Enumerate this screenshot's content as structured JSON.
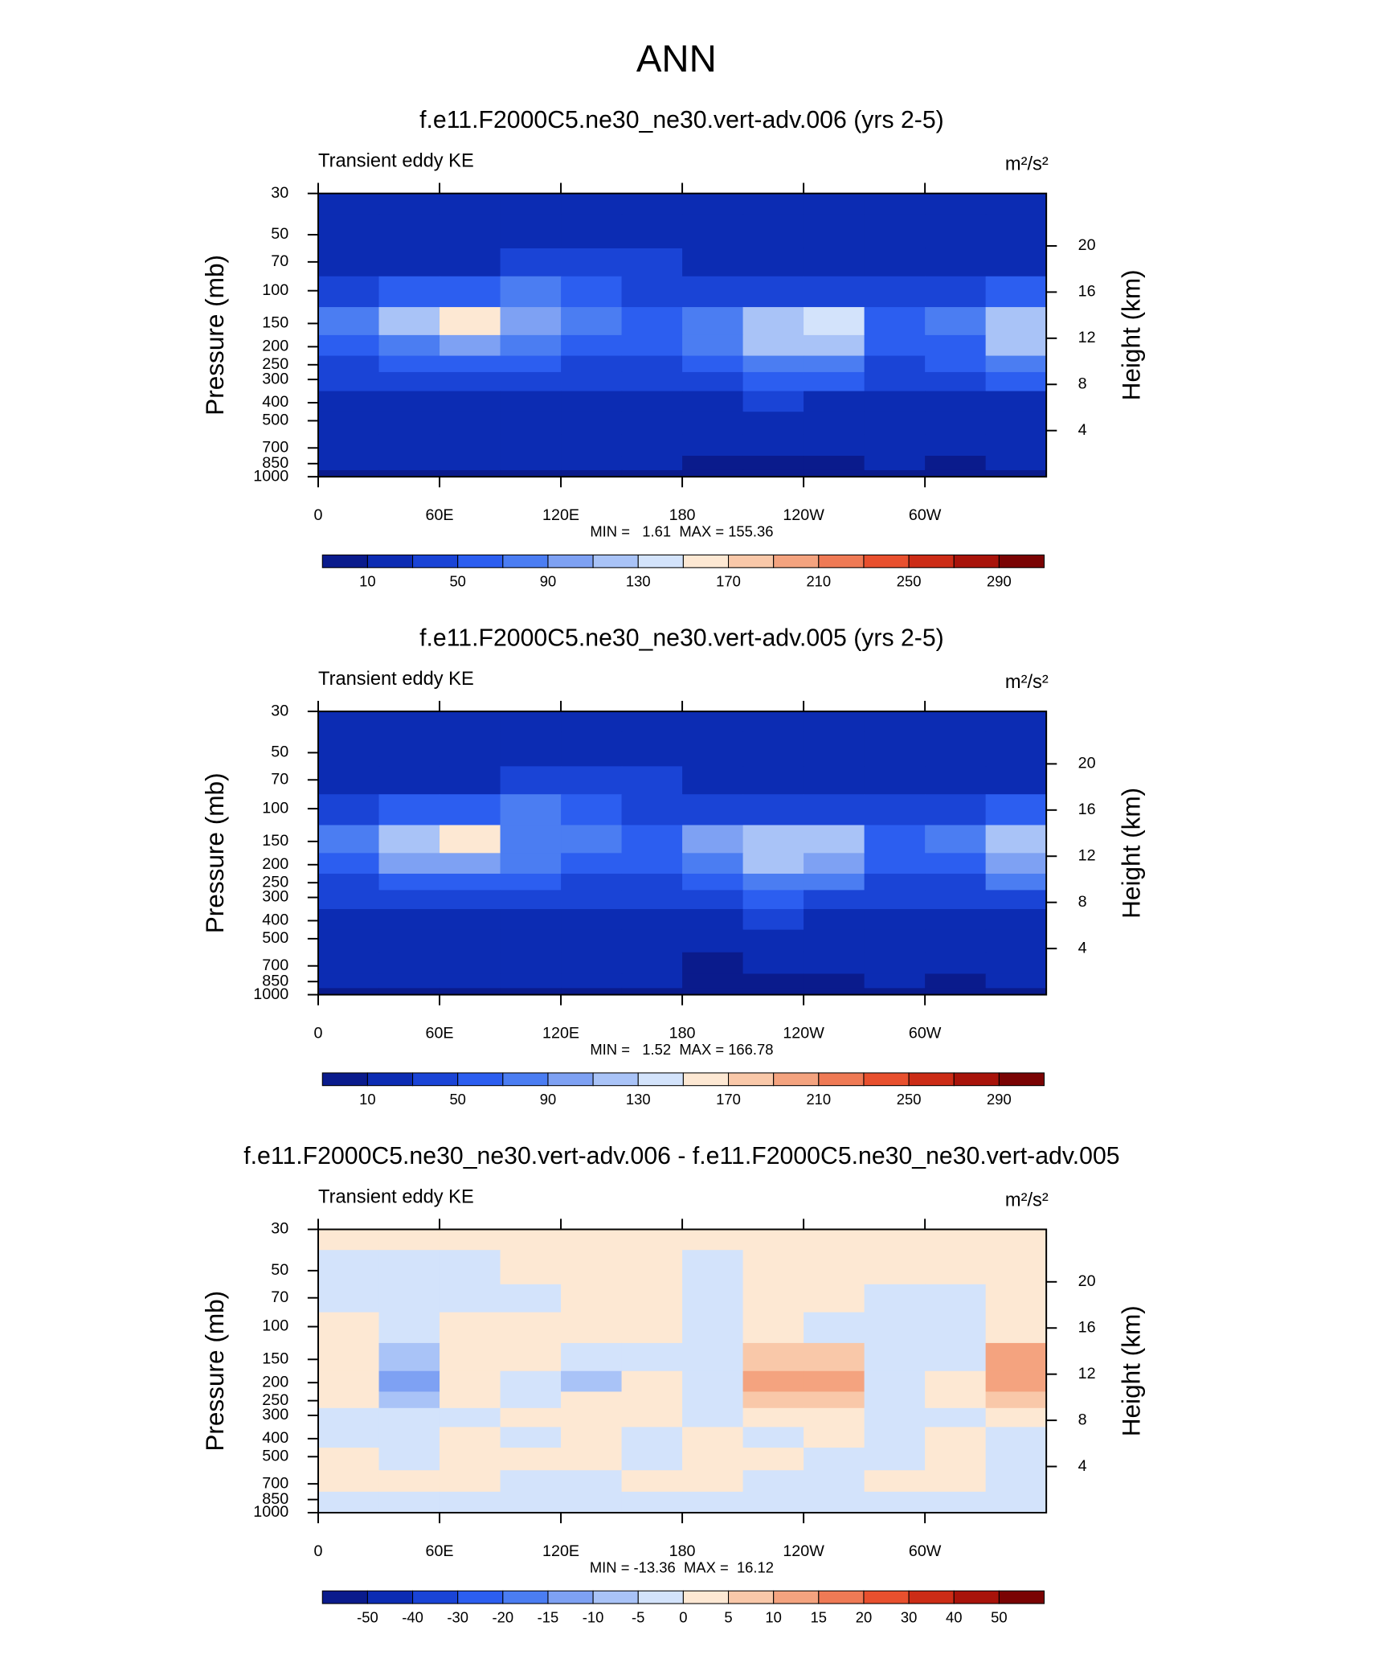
{
  "title": "ANN",
  "chart_data": [
    {
      "type": "contour",
      "title": "f.e11.F2000C5.ne30_ne30.vert-adv.006 (yrs 2-5)",
      "subtitle": "Transient eddy KE",
      "units": "m²/s²",
      "ylabel": "Pressure (mb)",
      "y2label": "Height (km)",
      "stats": "MIN =   1.61  MAX = 155.36",
      "x": [
        15,
        45,
        75,
        105,
        135,
        165,
        195,
        225,
        255,
        285,
        315,
        345
      ],
      "y": [
        30,
        50,
        70,
        100,
        150,
        200,
        250,
        300,
        400,
        500,
        700,
        850,
        1000
      ],
      "values": [
        [
          20,
          20,
          20,
          20,
          20,
          20,
          20,
          20,
          20,
          20,
          20,
          20
        ],
        [
          20,
          20,
          20,
          20,
          20,
          20,
          20,
          20,
          20,
          20,
          20,
          20
        ],
        [
          22,
          25,
          28,
          32,
          38,
          35,
          28,
          25,
          25,
          25,
          25,
          22
        ],
        [
          40,
          55,
          65,
          70,
          60,
          45,
          40,
          45,
          45,
          40,
          42,
          55
        ],
        [
          70,
          110,
          155,
          90,
          70,
          55,
          85,
          125,
          135,
          60,
          80,
          125
        ],
        [
          60,
          85,
          95,
          70,
          60,
          50,
          75,
          120,
          115,
          55,
          60,
          110
        ],
        [
          45,
          55,
          55,
          50,
          45,
          40,
          55,
          85,
          80,
          45,
          50,
          75
        ],
        [
          35,
          40,
          40,
          38,
          35,
          32,
          40,
          55,
          50,
          38,
          40,
          50
        ],
        [
          28,
          25,
          28,
          28,
          25,
          25,
          28,
          30,
          28,
          26,
          28,
          28
        ],
        [
          25,
          22,
          25,
          25,
          25,
          25,
          25,
          25,
          25,
          22,
          25,
          25
        ],
        [
          22,
          22,
          22,
          22,
          22,
          22,
          20,
          20,
          20,
          20,
          20,
          22
        ],
        [
          15,
          18,
          20,
          20,
          20,
          20,
          8,
          8,
          8,
          15,
          8,
          15
        ],
        [
          8,
          8,
          8,
          8,
          8,
          8,
          8,
          8,
          8,
          8,
          8,
          8
        ]
      ],
      "xlim": [
        0,
        360
      ],
      "xticks": [
        0,
        {
          "value": 60,
          "label": "60E"
        },
        {
          "value": 120,
          "label": "120E"
        },
        180,
        {
          "value": 240,
          "label": "120W"
        },
        {
          "value": 300,
          "label": "60W"
        }
      ],
      "ylim": [
        30,
        1000
      ],
      "yscale": "log",
      "yticks": [
        30,
        50,
        70,
        100,
        150,
        200,
        250,
        300,
        400,
        500,
        700,
        850,
        1000
      ],
      "y2ticks": [
        20,
        16,
        12,
        8,
        4
      ],
      "colorbar": {
        "levels": [
          10,
          30,
          50,
          70,
          90,
          110,
          130,
          150,
          170,
          190,
          210,
          230,
          250,
          270,
          290
        ],
        "ticks": [
          10,
          50,
          90,
          130,
          170,
          210,
          250,
          290
        ],
        "colors": [
          "#0a1b8c",
          "#0c2cb3",
          "#1a44d6",
          "#2c5ef0",
          "#4b7df2",
          "#7ea1f3",
          "#a9c3f7",
          "#d3e3fb",
          "#fde8d3",
          "#f9c8a9",
          "#f4a37f",
          "#ef7a55",
          "#e8502e",
          "#cc2c16",
          "#a8130a",
          "#7a0303"
        ]
      }
    },
    {
      "type": "contour",
      "title": "f.e11.F2000C5.ne30_ne30.vert-adv.005 (yrs 2-5)",
      "subtitle": "Transient eddy KE",
      "units": "m²/s²",
      "ylabel": "Pressure (mb)",
      "y2label": "Height (km)",
      "stats": "MIN =   1.52  MAX = 166.78",
      "x": [
        15,
        45,
        75,
        105,
        135,
        165,
        195,
        225,
        255,
        285,
        315,
        345
      ],
      "y": [
        30,
        50,
        70,
        100,
        150,
        200,
        250,
        300,
        400,
        500,
        700,
        850,
        1000
      ],
      "values": [
        [
          20,
          20,
          20,
          20,
          20,
          20,
          20,
          20,
          20,
          20,
          20,
          20
        ],
        [
          20,
          20,
          20,
          20,
          20,
          20,
          20,
          20,
          20,
          20,
          20,
          20
        ],
        [
          22,
          25,
          28,
          32,
          38,
          35,
          28,
          25,
          25,
          25,
          25,
          22
        ],
        [
          40,
          55,
          65,
          70,
          65,
          45,
          40,
          45,
          45,
          40,
          40,
          50
        ],
        [
          70,
          115,
          165,
          85,
          75,
          55,
          95,
          125,
          110,
          55,
          70,
          110
        ],
        [
          60,
          90,
          100,
          75,
          60,
          50,
          85,
          120,
          100,
          50,
          55,
          105
        ],
        [
          45,
          55,
          55,
          50,
          45,
          40,
          55,
          80,
          70,
          45,
          45,
          70
        ],
        [
          35,
          40,
          40,
          32,
          32,
          32,
          40,
          50,
          45,
          35,
          40,
          48
        ],
        [
          28,
          25,
          28,
          25,
          25,
          25,
          28,
          30,
          28,
          26,
          28,
          28
        ],
        [
          25,
          22,
          25,
          25,
          25,
          25,
          25,
          25,
          25,
          22,
          25,
          25
        ],
        [
          22,
          22,
          22,
          22,
          22,
          20,
          8,
          20,
          20,
          20,
          20,
          22
        ],
        [
          15,
          18,
          20,
          20,
          20,
          20,
          8,
          8,
          8,
          15,
          8,
          15
        ],
        [
          8,
          8,
          8,
          8,
          8,
          8,
          8,
          8,
          8,
          8,
          8,
          8
        ]
      ],
      "xlim": [
        0,
        360
      ],
      "xticks": [
        0,
        {
          "value": 60,
          "label": "60E"
        },
        {
          "value": 120,
          "label": "120E"
        },
        180,
        {
          "value": 240,
          "label": "120W"
        },
        {
          "value": 300,
          "label": "60W"
        }
      ],
      "ylim": [
        30,
        1000
      ],
      "yscale": "log",
      "yticks": [
        30,
        50,
        70,
        100,
        150,
        200,
        250,
        300,
        400,
        500,
        700,
        850,
        1000
      ],
      "y2ticks": [
        20,
        16,
        12,
        8,
        4
      ],
      "colorbar": {
        "levels": [
          10,
          30,
          50,
          70,
          90,
          110,
          130,
          150,
          170,
          190,
          210,
          230,
          250,
          270,
          290
        ],
        "ticks": [
          10,
          50,
          90,
          130,
          170,
          210,
          250,
          290
        ],
        "colors": [
          "#0a1b8c",
          "#0c2cb3",
          "#1a44d6",
          "#2c5ef0",
          "#4b7df2",
          "#7ea1f3",
          "#a9c3f7",
          "#d3e3fb",
          "#fde8d3",
          "#f9c8a9",
          "#f4a37f",
          "#ef7a55",
          "#e8502e",
          "#cc2c16",
          "#a8130a",
          "#7a0303"
        ]
      }
    },
    {
      "type": "contour",
      "title": "f.e11.F2000C5.ne30_ne30.vert-adv.006 - f.e11.F2000C5.ne30_ne30.vert-adv.005",
      "subtitle": "Transient eddy KE",
      "units": "m²/s²",
      "ylabel": "Pressure (mb)",
      "y2label": "Height (km)",
      "stats": "MIN = -13.36  MAX =  16.12",
      "x": [
        15,
        45,
        75,
        105,
        135,
        165,
        195,
        225,
        255,
        285,
        315,
        345
      ],
      "y": [
        30,
        50,
        70,
        100,
        150,
        200,
        250,
        300,
        400,
        500,
        700,
        850,
        1000
      ],
      "values": [
        [
          2,
          2,
          2,
          2,
          2,
          2,
          2,
          2,
          2,
          2,
          2,
          2
        ],
        [
          -2,
          -2,
          -2,
          2,
          2,
          2,
          -2,
          2,
          2,
          2,
          2,
          2
        ],
        [
          -2,
          -2,
          -2,
          -2,
          2,
          2,
          -2,
          2,
          2,
          -2,
          -2,
          2
        ],
        [
          2,
          -2,
          2,
          2,
          2,
          2,
          -2,
          2,
          -2,
          -2,
          -2,
          2
        ],
        [
          2,
          -8,
          2,
          2,
          -2,
          -2,
          -2,
          8,
          8,
          -2,
          -2,
          12
        ],
        [
          2,
          -12,
          2,
          -2,
          -7,
          2,
          -2,
          12,
          10,
          -2,
          2,
          10
        ],
        [
          2,
          -8,
          2,
          -2,
          2,
          2,
          -2,
          8,
          6,
          -2,
          2,
          7
        ],
        [
          -2,
          -2,
          -2,
          2,
          2,
          2,
          -2,
          2,
          2,
          -2,
          -2,
          2
        ],
        [
          -2,
          -2,
          2,
          -2,
          2,
          -2,
          2,
          -2,
          2,
          -2,
          2,
          -2
        ],
        [
          2,
          -2,
          2,
          2,
          2,
          -2,
          2,
          2,
          -2,
          -2,
          2,
          -2
        ],
        [
          2,
          2,
          2,
          -2,
          -2,
          2,
          2,
          -2,
          -2,
          2,
          2,
          -2
        ],
        [
          -2,
          -2,
          -2,
          -2,
          -2,
          -2,
          -2,
          -2,
          -2,
          -2,
          -2,
          -2
        ],
        [
          -2,
          -2,
          -2,
          -2,
          -2,
          -2,
          -2,
          -2,
          -2,
          -2,
          -2,
          -2
        ]
      ],
      "xlim": [
        0,
        360
      ],
      "xticks": [
        0,
        {
          "value": 60,
          "label": "60E"
        },
        {
          "value": 120,
          "label": "120E"
        },
        180,
        {
          "value": 240,
          "label": "120W"
        },
        {
          "value": 300,
          "label": "60W"
        }
      ],
      "ylim": [
        30,
        1000
      ],
      "yscale": "log",
      "yticks": [
        30,
        50,
        70,
        100,
        150,
        200,
        250,
        300,
        400,
        500,
        700,
        850,
        1000
      ],
      "y2ticks": [
        20,
        16,
        12,
        8,
        4
      ],
      "colorbar": {
        "levels": [
          -50,
          -40,
          -30,
          -20,
          -15,
          -10,
          -5,
          0,
          5,
          10,
          15,
          20,
          30,
          40,
          50
        ],
        "ticks": [
          -50,
          -40,
          -30,
          -20,
          -15,
          -10,
          -5,
          0,
          5,
          10,
          15,
          20,
          30,
          40,
          50
        ],
        "colors": [
          "#0a1b8c",
          "#0c2cb3",
          "#1a44d6",
          "#2c5ef0",
          "#4b7df2",
          "#7ea1f3",
          "#a9c3f7",
          "#d3e3fb",
          "#fde8d3",
          "#f9c8a9",
          "#f4a37f",
          "#ef7a55",
          "#e8502e",
          "#cc2c16",
          "#a8130a",
          "#7a0303"
        ]
      }
    }
  ]
}
